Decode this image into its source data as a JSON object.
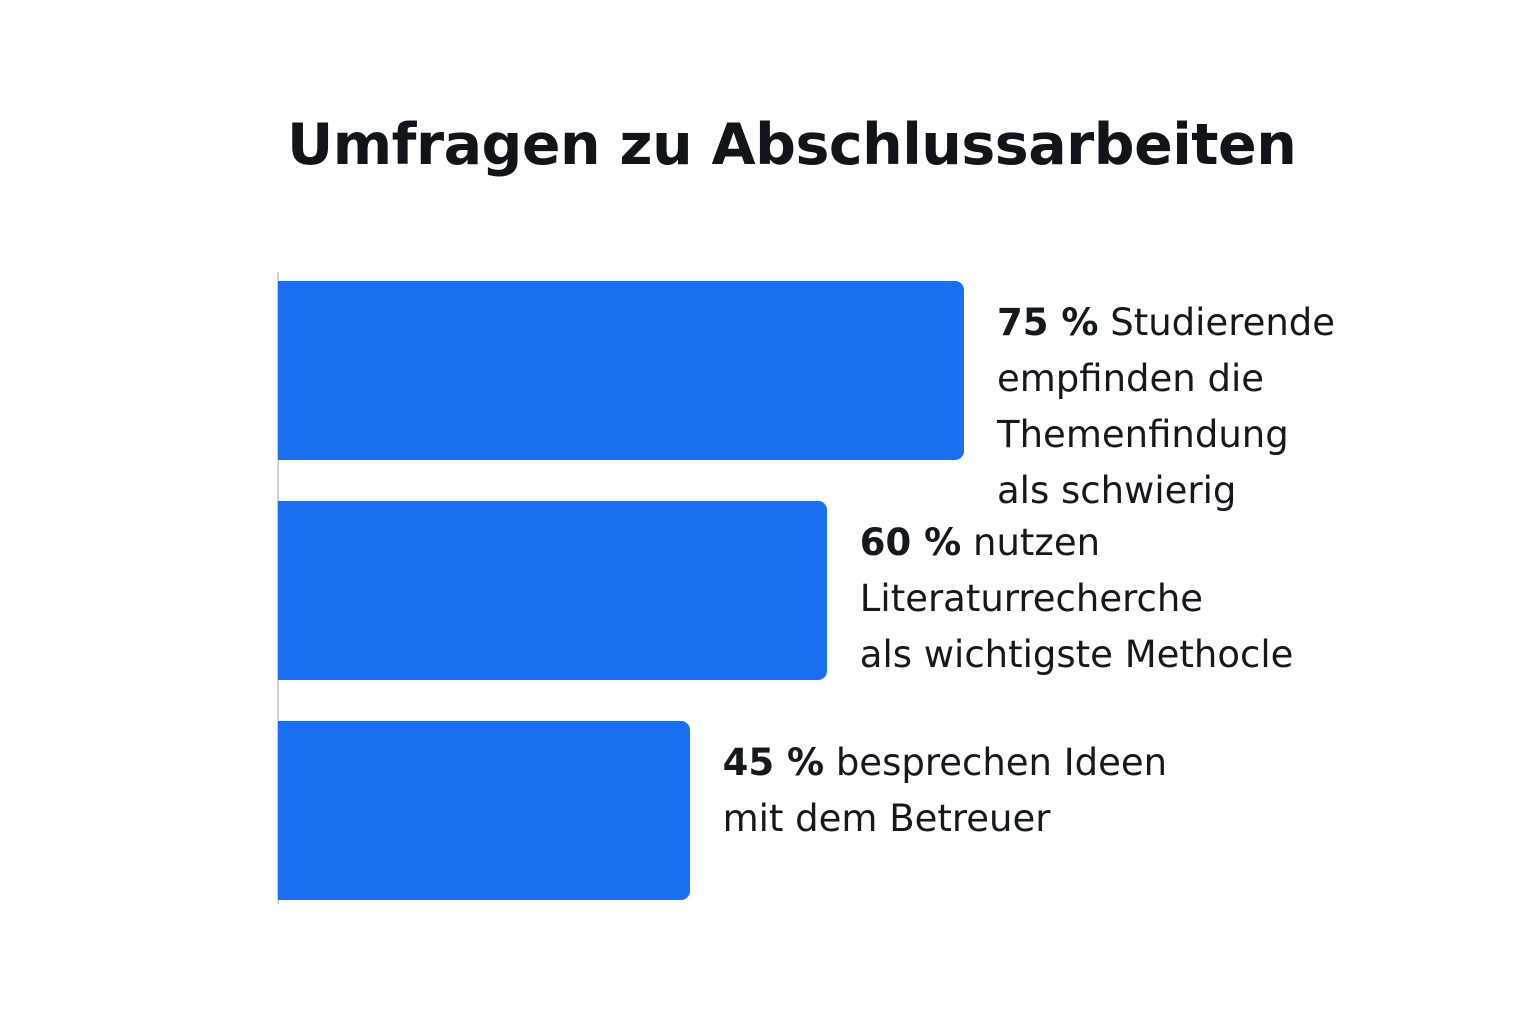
{
  "chart_data": {
    "type": "bar",
    "orientation": "horizontal",
    "title": "Umfragen zu Abschlussarbeiten",
    "unit": "%",
    "xlim": [
      0,
      100
    ],
    "grid": false,
    "accent_color": "#1a6ef0",
    "bars": [
      {
        "value": 75,
        "value_label": "75 %",
        "description": "Studierende\nempfinden die\nThemenfindung\nals schwierig"
      },
      {
        "value": 60,
        "value_label": "60 %",
        "description": "nutzen\nLiteraturrecherche\nals wichtigste Methocle"
      },
      {
        "value": 45,
        "value_label": "45 %",
        "description": "besprechen Ideen\nmit dem Betreuer"
      }
    ]
  }
}
